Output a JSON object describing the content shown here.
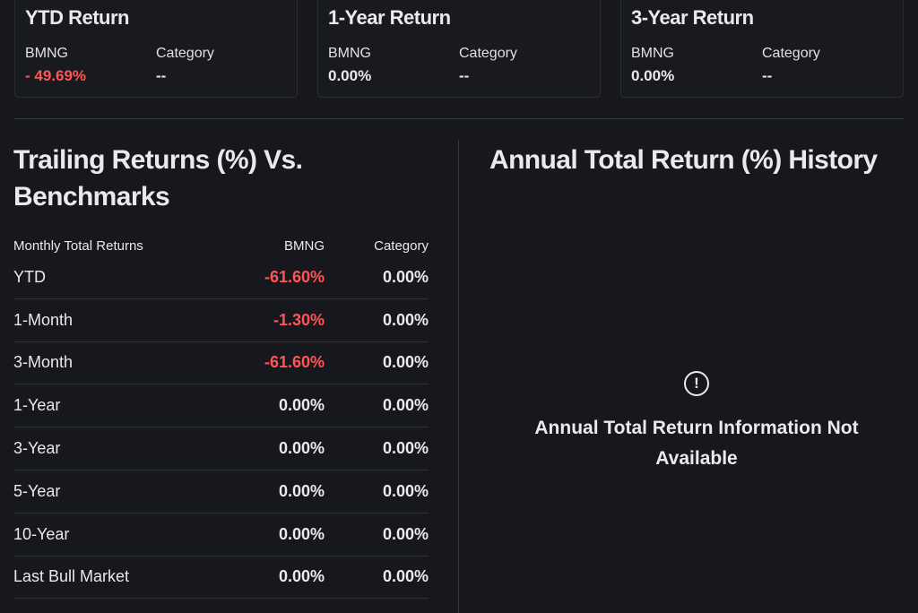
{
  "cards": [
    {
      "title": "YTD Return",
      "fund_label": "BMNG",
      "fund_value": "- 49.69%",
      "category_label": "Category",
      "category_value": "--"
    },
    {
      "title": "1-Year Return",
      "fund_label": "BMNG",
      "fund_value": "0.00%",
      "category_label": "Category",
      "category_value": "--"
    },
    {
      "title": "3-Year Return",
      "fund_label": "BMNG",
      "fund_value": "0.00%",
      "category_label": "Category",
      "category_value": "--"
    }
  ],
  "trailing": {
    "title": "Trailing Returns (%) Vs. Benchmarks",
    "headers": {
      "period": "Monthly Total Returns",
      "fund": "BMNG",
      "category": "Category"
    },
    "rows": [
      {
        "period": "YTD",
        "fund": "-61.60%",
        "category": "0.00%"
      },
      {
        "period": "1-Month",
        "fund": "-1.30%",
        "category": "0.00%"
      },
      {
        "period": "3-Month",
        "fund": "-61.60%",
        "category": "0.00%"
      },
      {
        "period": "1-Year",
        "fund": "0.00%",
        "category": "0.00%"
      },
      {
        "period": "3-Year",
        "fund": "0.00%",
        "category": "0.00%"
      },
      {
        "period": "5-Year",
        "fund": "0.00%",
        "category": "0.00%"
      },
      {
        "period": "10-Year",
        "fund": "0.00%",
        "category": "0.00%"
      },
      {
        "period": "Last Bull Market",
        "fund": "0.00%",
        "category": "0.00%"
      }
    ]
  },
  "annual": {
    "title": "Annual Total Return (%) History",
    "icon": "exclamation-circle-icon",
    "message": "Annual Total Return Information Not Available"
  },
  "colors": {
    "negative": "#ff5555",
    "background": "#16181d",
    "text": "#e9eaec"
  }
}
